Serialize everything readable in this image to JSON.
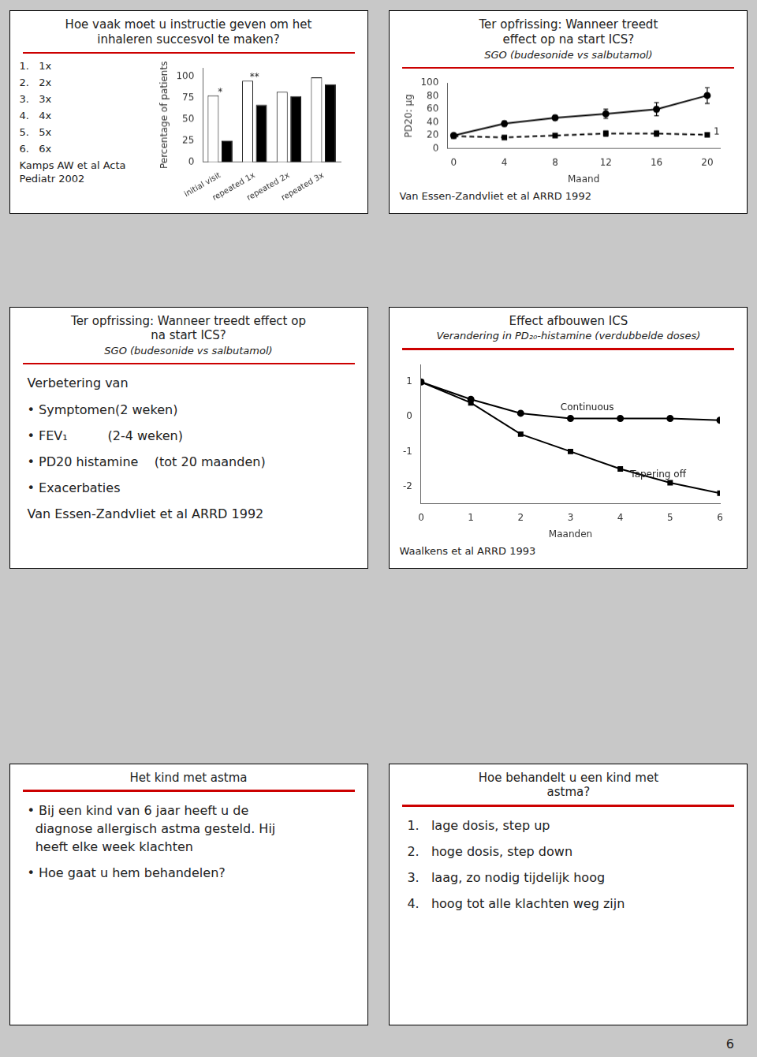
{
  "chart_data": [
    {
      "type": "bar",
      "title": [
        "Hoe vaak moet u instructie geven om het",
        "inhaleren succesvol te maken?"
      ],
      "categories": [
        "initial visit",
        "repeated 1x",
        "repeated 2x",
        "repeated 3x"
      ],
      "series": [
        {
          "color": "#ffffff",
          "values": [
            78,
            95,
            82,
            99
          ]
        },
        {
          "color": "#000000",
          "values": [
            25,
            67,
            77,
            91
          ]
        }
      ],
      "ylabel": "Percentage of patients",
      "ylim": [
        0,
        110
      ],
      "yticks": [
        0,
        25,
        50,
        75,
        100
      ],
      "grid": false,
      "annotations": [
        "1.   1x",
        "2.   2x",
        "3.   3x",
        "4.   4x",
        "5.   5x",
        "6.   6x",
        "Kamps AW et al Acta Pediatr 2002",
        {
          "text": "*",
          "x": "initial visit",
          "y": 79
        },
        {
          "text": "**",
          "x": "repeated 1x",
          "y": 96
        }
      ]
    },
    {
      "type": "line",
      "title": [
        "Ter opfrissing: Wanneer treedt",
        "effect op na start ICS?"
      ],
      "subtitle": "SGO (budesonide vs salbutamol)",
      "x": [
        0,
        4,
        8,
        12,
        16,
        20
      ],
      "series": [
        {
          "color": "#000000",
          "marker": "circle",
          "line_style": "solid",
          "values": [
            20,
            38,
            47,
            53,
            60,
            81
          ],
          "errors": [
            3,
            4,
            4,
            7,
            10,
            12
          ]
        },
        {
          "color": "#000000",
          "marker": "square",
          "line_style": "dashed",
          "values": [
            19,
            17,
            20,
            23,
            23,
            21
          ],
          "errors": [
            2,
            2,
            3,
            4,
            4,
            3
          ]
        }
      ],
      "xlabel": "Maand",
      "ylabel": "PD20: μg",
      "xlim": [
        -0.5,
        21
      ],
      "xticks": [
        0,
        4,
        8,
        12,
        16,
        20
      ],
      "ylim": [
        0,
        100
      ],
      "yticks": [
        0,
        20,
        40,
        60,
        80,
        100
      ],
      "grid": false,
      "annotations": [
        {
          "text": "1",
          "x": 20.5,
          "y": 21
        },
        "Van Essen-Zandvliet et al ARRD 1992"
      ]
    },
    {
      "type": "text",
      "title": [
        "Ter opfrissing: Wanneer treedt effect op",
        "na start ICS?"
      ],
      "subtitle": "SGO (budesonide vs salbutamol)",
      "annotations": [
        "Verbetering van",
        "• Symptomen(2 weken)",
        "• FEV₁          (2-4 weken)",
        "• PD20 histamine    (tot 20 maanden)",
        "• Exacerbaties",
        "Van Essen-Zandvliet et al ARRD 1992"
      ]
    },
    {
      "type": "line",
      "title": [
        "Effect afbouwen ICS"
      ],
      "subtitle": "Verandering in PD₂₀-histamine (verdubbelde doses)",
      "x": [
        0,
        1,
        2,
        3,
        4,
        5,
        6
      ],
      "series": [
        {
          "color": "#000000",
          "marker": "circle",
          "line_style": "solid",
          "values": [
            1.0,
            0.5,
            0.1,
            -0.05,
            -0.05,
            -0.05,
            -0.1
          ]
        },
        {
          "color": "#000000",
          "marker": "square",
          "line_style": "solid",
          "values": [
            1.0,
            0.4,
            -0.5,
            -1.0,
            -1.5,
            -1.9,
            -2.2
          ]
        }
      ],
      "xlabel": "Maanden",
      "xlim": [
        0,
        6
      ],
      "xticks": [
        0,
        1,
        2,
        3,
        4,
        5,
        6
      ],
      "ylim": [
        -2.5,
        1.5
      ],
      "yticks": [
        -2,
        -1,
        0,
        1
      ],
      "grid": false,
      "annotations": [
        {
          "text": "Continuous",
          "x": 2.8,
          "y": 0.18
        },
        {
          "text": "Tapering off",
          "x": 4.2,
          "y": -1.75
        },
        "Waalkens et al ARRD 1993"
      ]
    },
    {
      "type": "text",
      "title": [
        "Het kind met astma"
      ],
      "annotations": [
        "• Bij een kind van 6 jaar heeft u de\n  diagnose allergisch astma gesteld. Hij\n  heeft elke week klachten",
        "• Hoe gaat u hem behandelen?"
      ]
    },
    {
      "type": "text",
      "title": [
        "Hoe behandelt u een kind met",
        "astma?"
      ],
      "annotations": [
        "1.   lage dosis, step up",
        "2.   hoge dosis, step down",
        "3.   laag, zo nodig tijdelijk hoog",
        "4.   hoog tot alle klachten weg zijn"
      ]
    }
  ],
  "annotations": [
    "6"
  ]
}
